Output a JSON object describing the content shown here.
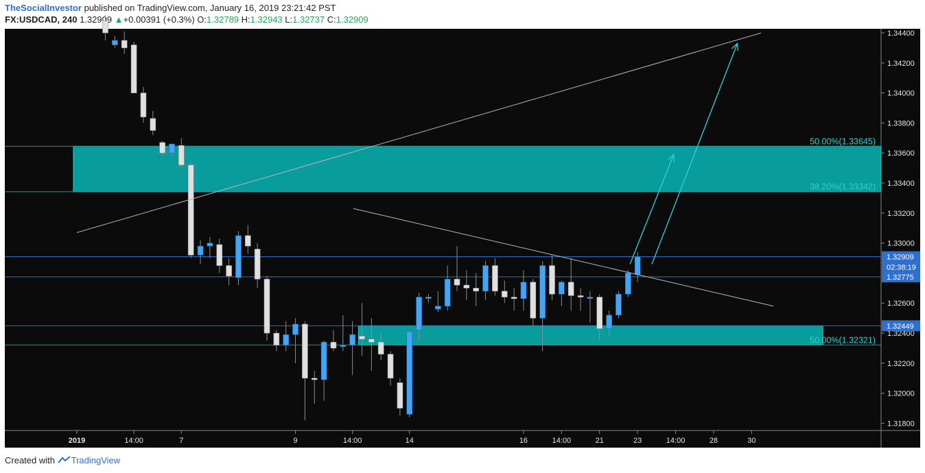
{
  "header": {
    "author": "TheSocialInvestor",
    "published_text": " published on TradingView.com, January 16, 2019 23:21:42 PST",
    "symbol": "FX:USDCAD, 240",
    "price": "1.32909",
    "change_arrow": "▲",
    "change": "+0.00391 (+0.3%)",
    "o_label": "O:",
    "o": "1.32789",
    "h_label": "H:",
    "h": "1.32943",
    "l_label": "L:",
    "l": "1.32737",
    "c_label": "C:",
    "c": "1.32909"
  },
  "footer": {
    "created_with": "Created with",
    "brand": "TradingView"
  },
  "colors": {
    "background": "#0b0b0b",
    "zone": "#089c9c",
    "fib_text": "#2fd1d1",
    "bull_candle": "#42a5f5",
    "bear_candle": "#e0e0e0",
    "trendline": "#b7b7b7",
    "arrow": "#2bd3e8",
    "level_line": "#2f6fd0"
  },
  "chart_data": {
    "type": "candlestick",
    "symbol": "FX:USDCAD",
    "timeframe": "240",
    "ylim": [
      1.317,
      1.3447
    ],
    "y_ticks": [
      "1.34400",
      "1.34200",
      "1.34000",
      "1.33800",
      "1.33600",
      "1.33400",
      "1.33200",
      "1.33000",
      "1.32600",
      "1.32400",
      "1.32200",
      "1.32000",
      "1.31800"
    ],
    "x_ticks": [
      {
        "label": "2019",
        "i": 0
      },
      {
        "label": "14:00",
        "i": 6
      },
      {
        "label": "7",
        "i": 11
      },
      {
        "label": "9",
        "i": 23
      },
      {
        "label": "14:00",
        "i": 29
      },
      {
        "label": "14",
        "i": 35
      },
      {
        "label": "16",
        "i": 47
      },
      {
        "label": "14:00",
        "i": 51
      },
      {
        "label": "21",
        "i": 55
      },
      {
        "label": "23",
        "i": 59
      },
      {
        "label": "14:00",
        "i": 63
      },
      {
        "label": "28",
        "i": 67
      },
      {
        "label": "30",
        "i": 71
      }
    ],
    "candles": [
      {
        "i": 3,
        "o": 1.3448,
        "h": 1.3452,
        "l": 1.3435,
        "c": 1.344
      },
      {
        "i": 4,
        "o": 1.3432,
        "h": 1.3438,
        "l": 1.343,
        "c": 1.3435
      },
      {
        "i": 5,
        "o": 1.3435,
        "h": 1.3441,
        "l": 1.3426,
        "c": 1.343
      },
      {
        "i": 6,
        "o": 1.3432,
        "h": 1.3434,
        "l": 1.34,
        "c": 1.34
      },
      {
        "i": 7,
        "o": 1.34,
        "h": 1.3404,
        "l": 1.338,
        "c": 1.3384
      },
      {
        "i": 8,
        "o": 1.3383,
        "h": 1.3388,
        "l": 1.3372,
        "c": 1.3375
      },
      {
        "i": 9,
        "o": 1.3367,
        "h": 1.3368,
        "l": 1.3358,
        "c": 1.336
      },
      {
        "i": 10,
        "o": 1.336,
        "h": 1.3366,
        "l": 1.3358,
        "c": 1.3366
      },
      {
        "i": 11,
        "o": 1.3365,
        "h": 1.337,
        "l": 1.335,
        "c": 1.3352
      },
      {
        "i": 12,
        "o": 1.3352,
        "h": 1.3354,
        "l": 1.329,
        "c": 1.3292
      },
      {
        "i": 13,
        "o": 1.3292,
        "h": 1.3302,
        "l": 1.3286,
        "c": 1.3298
      },
      {
        "i": 14,
        "o": 1.3298,
        "h": 1.3304,
        "l": 1.329,
        "c": 1.33
      },
      {
        "i": 15,
        "o": 1.3299,
        "h": 1.3303,
        "l": 1.328,
        "c": 1.3285
      },
      {
        "i": 16,
        "o": 1.3285,
        "h": 1.329,
        "l": 1.3272,
        "c": 1.3278
      },
      {
        "i": 17,
        "o": 1.3277,
        "h": 1.3308,
        "l": 1.3272,
        "c": 1.3305
      },
      {
        "i": 18,
        "o": 1.3305,
        "h": 1.3312,
        "l": 1.3293,
        "c": 1.3298
      },
      {
        "i": 19,
        "o": 1.3296,
        "h": 1.33,
        "l": 1.327,
        "c": 1.3276
      },
      {
        "i": 20,
        "o": 1.3276,
        "h": 1.3278,
        "l": 1.3235,
        "c": 1.324
      },
      {
        "i": 21,
        "o": 1.324,
        "h": 1.3242,
        "l": 1.3228,
        "c": 1.3232
      },
      {
        "i": 22,
        "o": 1.3232,
        "h": 1.3248,
        "l": 1.3228,
        "c": 1.3239
      },
      {
        "i": 23,
        "o": 1.3239,
        "h": 1.325,
        "l": 1.322,
        "c": 1.3246
      },
      {
        "i": 24,
        "o": 1.3246,
        "h": 1.3248,
        "l": 1.3182,
        "c": 1.321
      },
      {
        "i": 25,
        "o": 1.321,
        "h": 1.3215,
        "l": 1.3193,
        "c": 1.3209
      },
      {
        "i": 26,
        "o": 1.3209,
        "h": 1.3235,
        "l": 1.3195,
        "c": 1.3234
      },
      {
        "i": 27,
        "o": 1.3234,
        "h": 1.3242,
        "l": 1.3228,
        "c": 1.323
      },
      {
        "i": 28,
        "o": 1.3231,
        "h": 1.3252,
        "l": 1.3228,
        "c": 1.3232
      },
      {
        "i": 29,
        "o": 1.3232,
        "h": 1.3248,
        "l": 1.3212,
        "c": 1.3239
      },
      {
        "i": 30,
        "o": 1.3238,
        "h": 1.326,
        "l": 1.3225,
        "c": 1.3236
      },
      {
        "i": 31,
        "o": 1.3236,
        "h": 1.325,
        "l": 1.3215,
        "c": 1.3234
      },
      {
        "i": 32,
        "o": 1.3234,
        "h": 1.324,
        "l": 1.3222,
        "c": 1.3226
      },
      {
        "i": 33,
        "o": 1.3226,
        "h": 1.3228,
        "l": 1.3205,
        "c": 1.321
      },
      {
        "i": 34,
        "o": 1.3207,
        "h": 1.321,
        "l": 1.3185,
        "c": 1.319
      },
      {
        "i": 35,
        "o": 1.3186,
        "h": 1.3242,
        "l": 1.3184,
        "c": 1.3241
      },
      {
        "i": 36,
        "o": 1.3242,
        "h": 1.3267,
        "l": 1.3235,
        "c": 1.3264
      },
      {
        "i": 37,
        "o": 1.3264,
        "h": 1.3266,
        "l": 1.326,
        "c": 1.3264
      },
      {
        "i": 38,
        "o": 1.3256,
        "h": 1.3268,
        "l": 1.3254,
        "c": 1.3258
      },
      {
        "i": 39,
        "o": 1.3258,
        "h": 1.3285,
        "l": 1.3255,
        "c": 1.3276
      },
      {
        "i": 40,
        "o": 1.3276,
        "h": 1.3298,
        "l": 1.3268,
        "c": 1.3272
      },
      {
        "i": 41,
        "o": 1.3272,
        "h": 1.3282,
        "l": 1.3262,
        "c": 1.327
      },
      {
        "i": 42,
        "o": 1.327,
        "h": 1.328,
        "l": 1.3258,
        "c": 1.3268
      },
      {
        "i": 43,
        "o": 1.3268,
        "h": 1.3288,
        "l": 1.3262,
        "c": 1.3285
      },
      {
        "i": 44,
        "o": 1.3285,
        "h": 1.329,
        "l": 1.3265,
        "c": 1.3268
      },
      {
        "i": 45,
        "o": 1.3268,
        "h": 1.3275,
        "l": 1.326,
        "c": 1.3264
      },
      {
        "i": 46,
        "o": 1.3264,
        "h": 1.327,
        "l": 1.3255,
        "c": 1.3263
      },
      {
        "i": 47,
        "o": 1.3263,
        "h": 1.3282,
        "l": 1.3255,
        "c": 1.3274
      },
      {
        "i": 48,
        "o": 1.3274,
        "h": 1.3276,
        "l": 1.3245,
        "c": 1.325
      },
      {
        "i": 49,
        "o": 1.325,
        "h": 1.3288,
        "l": 1.3228,
        "c": 1.3285
      },
      {
        "i": 50,
        "o": 1.3285,
        "h": 1.3292,
        "l": 1.3262,
        "c": 1.3266
      },
      {
        "i": 51,
        "o": 1.3266,
        "h": 1.3275,
        "l": 1.3258,
        "c": 1.3274
      },
      {
        "i": 52,
        "o": 1.3274,
        "h": 1.329,
        "l": 1.3255,
        "c": 1.3265
      },
      {
        "i": 53,
        "o": 1.3265,
        "h": 1.327,
        "l": 1.3255,
        "c": 1.3264
      },
      {
        "i": 54,
        "o": 1.3264,
        "h": 1.3268,
        "l": 1.3247,
        "c": 1.3264
      },
      {
        "i": 55,
        "o": 1.3264,
        "h": 1.3266,
        "l": 1.3235,
        "c": 1.3243
      },
      {
        "i": 56,
        "o": 1.3243,
        "h": 1.3255,
        "l": 1.3238,
        "c": 1.3252
      },
      {
        "i": 57,
        "o": 1.3252,
        "h": 1.3268,
        "l": 1.325,
        "c": 1.3266
      },
      {
        "i": 58,
        "o": 1.3266,
        "h": 1.3282,
        "l": 1.3264,
        "c": 1.328
      },
      {
        "i": 59,
        "o": 1.3279,
        "h": 1.3294,
        "l": 1.3274,
        "c": 1.3291
      }
    ],
    "zones": [
      {
        "name": "upper-zone",
        "i_start": 0,
        "i_end": 115,
        "top": 1.33645,
        "bottom": 1.33342
      },
      {
        "name": "lower-zone",
        "i_start": 30,
        "i_end": 78.5,
        "top": 1.32449,
        "bottom": 1.32321
      }
    ],
    "fib_labels": [
      {
        "text": "50.00%(1.33645)",
        "price": 1.33645
      },
      {
        "text": "38.20%(1.33342)",
        "price": 1.33342
      },
      {
        "text": "50.00%(1.32321)",
        "price": 1.32321
      }
    ],
    "price_labels": [
      {
        "text": "1.32909",
        "price": 1.32909
      },
      {
        "text": "02:38:19",
        "price": 1.3284
      },
      {
        "text": "1.32775",
        "price": 1.32775
      },
      {
        "text": "1.32449",
        "price": 1.32449
      }
    ],
    "trendlines": [
      {
        "name": "rising-trendline",
        "from": {
          "i": 0,
          "p": 1.3307
        },
        "to": {
          "i": 72,
          "p": 1.344
        }
      },
      {
        "name": "descending-trendline",
        "from": {
          "i": 29.1,
          "p": 1.3323
        },
        "to": {
          "i": 73.3,
          "p": 1.3258
        }
      }
    ],
    "projection_arrows": [
      {
        "name": "projection-arrow-short",
        "from": {
          "i": 58.2,
          "p": 1.3286
        },
        "to": {
          "i": 62.8,
          "p": 1.3359
        }
      },
      {
        "name": "projection-arrow-long",
        "from": {
          "i": 60.5,
          "p": 1.3286
        },
        "to": {
          "i": 69.5,
          "p": 1.3433
        }
      }
    ]
  }
}
